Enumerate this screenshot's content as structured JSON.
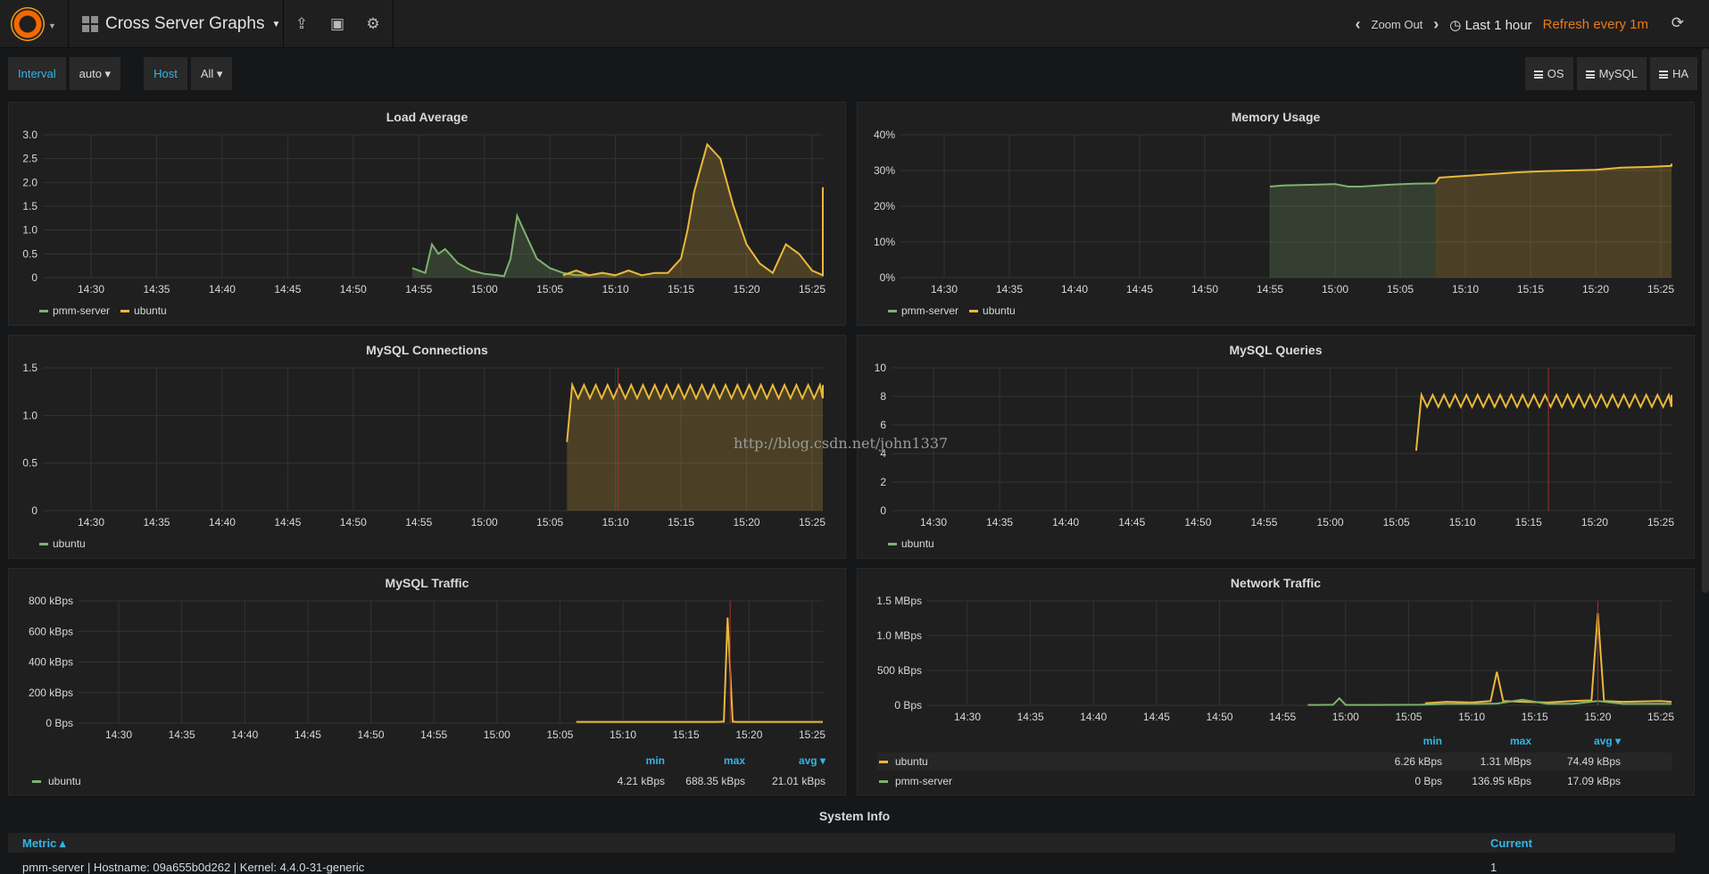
{
  "navbar": {
    "dashboard_title": "Cross Server Graphs",
    "zoom_out": "Zoom Out",
    "time_range": "Last 1 hour",
    "refresh": "Refresh every 1m"
  },
  "variables": [
    {
      "label": "Interval",
      "value": "auto ▾"
    },
    {
      "label": "Host",
      "value": "All ▾"
    }
  ],
  "dash_links": [
    "OS",
    "MySQL",
    "HA"
  ],
  "watermark": "http://blog.csdn.net/john1337",
  "time_axis": [
    "14:30",
    "14:35",
    "14:40",
    "14:45",
    "14:50",
    "14:55",
    "15:00",
    "15:05",
    "15:10",
    "15:15",
    "15:20",
    "15:25"
  ],
  "colors": {
    "pmm_server": "#7eb26d",
    "ubuntu": "#eab839",
    "annotation": "#a0312a",
    "accent": "#33b5e5",
    "refresh": "#eb7b18"
  },
  "panels": {
    "load_average": {
      "title": "Load Average",
      "legend": [
        "pmm-server",
        "ubuntu"
      ]
    },
    "memory_usage": {
      "title": "Memory Usage",
      "legend": [
        "pmm-server",
        "ubuntu"
      ]
    },
    "mysql_connections": {
      "title": "MySQL Connections",
      "legend": [
        "ubuntu"
      ]
    },
    "mysql_queries": {
      "title": "MySQL Queries",
      "legend": [
        "ubuntu"
      ]
    },
    "mysql_traffic": {
      "title": "MySQL Traffic",
      "columns": [
        "min",
        "max",
        "avg ▾"
      ],
      "rows": [
        {
          "name": "ubuntu",
          "min": "4.21 kBps",
          "max": "688.35 kBps",
          "avg": "21.01 kBps"
        }
      ]
    },
    "network_traffic": {
      "title": "Network Traffic",
      "columns": [
        "min",
        "max",
        "avg ▾"
      ],
      "rows": [
        {
          "name": "ubuntu",
          "min": "6.26 kBps",
          "max": "1.31 MBps",
          "avg": "74.49 kBps"
        },
        {
          "name": "pmm-server",
          "min": "0 Bps",
          "max": "136.95 kBps",
          "avg": "17.09 kBps"
        }
      ]
    }
  },
  "system_info": {
    "title": "System Info",
    "col_metric": "Metric ▴",
    "col_current": "Current",
    "row_metric": "pmm-server | Hostname: 09a655b0d262 | Kernel: 4.4.0-31-generic",
    "row_current": "1"
  },
  "chart_data": [
    {
      "type": "area",
      "title": "Load Average",
      "x_ticks": [
        "14:30",
        "14:35",
        "14:40",
        "14:45",
        "14:50",
        "14:55",
        "15:00",
        "15:05",
        "15:10",
        "15:15",
        "15:20",
        "15:25"
      ],
      "y_ticks": [
        "0",
        "0.5",
        "1.0",
        "1.5",
        "2.0",
        "2.5",
        "3.0"
      ],
      "ylim": [
        0,
        3.0
      ],
      "xlim_minutes": [
        0,
        60
      ],
      "series": [
        {
          "name": "pmm-server",
          "x": [
            24.5,
            25,
            25.5,
            26,
            26.5,
            27,
            28,
            29,
            30,
            31,
            31.5,
            32,
            32.5,
            33,
            34,
            35,
            36,
            37,
            38,
            39,
            40
          ],
          "y": [
            0.2,
            0.15,
            0.1,
            0.7,
            0.5,
            0.6,
            0.3,
            0.15,
            0.08,
            0.05,
            0.03,
            0.4,
            1.3,
            1.0,
            0.4,
            0.2,
            0.1,
            0.05,
            0.05,
            0.1,
            0.05
          ]
        },
        {
          "name": "ubuntu",
          "x": [
            36,
            37,
            38,
            39,
            40,
            41,
            42,
            43,
            44,
            45,
            45.5,
            46,
            46.5,
            47,
            48,
            49,
            50,
            51,
            52,
            53,
            54,
            55,
            56,
            57,
            58,
            59,
            60,
            61,
            61.5,
            62,
            62.5,
            63
          ],
          "y": [
            0.05,
            0.15,
            0.05,
            0.1,
            0.05,
            0.15,
            0.05,
            0.1,
            0.1,
            0.4,
            1.0,
            1.8,
            2.3,
            2.8,
            2.5,
            1.5,
            0.7,
            0.3,
            0.1,
            0.7,
            0.5,
            0.15,
            0.05,
            0.25,
            0.1,
            0.2,
            0.05,
            0.25,
            0.1,
            0.4,
            1.7,
            1.9
          ]
        }
      ]
    },
    {
      "type": "area",
      "title": "Memory Usage",
      "x_ticks": [
        "14:30",
        "14:35",
        "14:40",
        "14:45",
        "14:50",
        "14:55",
        "15:00",
        "15:05",
        "15:10",
        "15:15",
        "15:20",
        "15:25"
      ],
      "y_ticks": [
        "0%",
        "10%",
        "20%",
        "30%",
        "40%"
      ],
      "ylim": [
        0,
        40
      ],
      "series": [
        {
          "name": "pmm-server",
          "x": [
            25,
            26,
            28,
            30,
            31,
            32,
            34,
            36,
            37.7
          ],
          "y": [
            25.5,
            25.8,
            26,
            26.2,
            25.5,
            25.5,
            26,
            26.3,
            26.4
          ]
        },
        {
          "name": "ubuntu",
          "x": [
            37.7,
            38,
            40,
            42,
            44,
            46,
            48,
            50,
            51,
            52,
            54,
            56,
            58,
            60,
            62.5
          ],
          "y": [
            26.4,
            28,
            28.5,
            29,
            29.5,
            29.8,
            30,
            30.2,
            30.5,
            30.8,
            31,
            31.3,
            31.5,
            31.8,
            31.9
          ]
        }
      ]
    },
    {
      "type": "area",
      "title": "MySQL Connections",
      "x_ticks": [
        "14:30",
        "14:35",
        "14:40",
        "14:45",
        "14:50",
        "14:55",
        "15:00",
        "15:05",
        "15:10",
        "15:15",
        "15:20",
        "15:25"
      ],
      "y_ticks": [
        "0",
        "0.5",
        "1.0",
        "1.5"
      ],
      "ylim": [
        0,
        1.5
      ],
      "series": [
        {
          "name": "ubuntu",
          "x_start": 36.3,
          "x_end": 62.8,
          "base": 1.22,
          "amp": 0.1,
          "period": 0.9,
          "first": 0.72
        }
      ]
    },
    {
      "type": "line",
      "title": "MySQL Queries",
      "x_ticks": [
        "14:30",
        "14:35",
        "14:40",
        "14:45",
        "14:50",
        "14:55",
        "15:00",
        "15:05",
        "15:10",
        "15:15",
        "15:20",
        "15:25"
      ],
      "y_ticks": [
        "0",
        "2",
        "4",
        "6",
        "8",
        "10"
      ],
      "ylim": [
        0,
        10
      ],
      "series": [
        {
          "name": "ubuntu",
          "x_start": 36.5,
          "x_end": 62.8,
          "base": 7.5,
          "amp": 0.6,
          "period": 0.85,
          "first": 4.2
        }
      ]
    },
    {
      "type": "line",
      "title": "MySQL Traffic",
      "x_ticks": [
        "14:30",
        "14:35",
        "14:40",
        "14:45",
        "14:50",
        "14:55",
        "15:00",
        "15:05",
        "15:10",
        "15:15",
        "15:20",
        "15:25"
      ],
      "y_ticks": [
        "0 Bps",
        "200 kBps",
        "400 kBps",
        "600 kBps",
        "800 kBps"
      ],
      "ylim": [
        0,
        800
      ],
      "series": [
        {
          "name": "ubuntu",
          "x": [
            36.3,
            38,
            40,
            42,
            44,
            46,
            47.5,
            48,
            48.3,
            48.7,
            49,
            50,
            52,
            55,
            59.8
          ],
          "y": [
            8,
            8,
            8,
            8,
            8,
            8,
            8,
            10,
            690,
            10,
            8,
            8,
            8,
            8,
            8
          ]
        }
      ]
    },
    {
      "type": "line",
      "title": "Network Traffic",
      "x_ticks": [
        "14:30",
        "14:35",
        "14:40",
        "14:45",
        "14:50",
        "14:55",
        "15:00",
        "15:05",
        "15:10",
        "15:15",
        "15:20",
        "15:25"
      ],
      "y_ticks": [
        "0 Bps",
        "500 kBps",
        "1.0 MBps",
        "1.5 MBps"
      ],
      "ylim": [
        0,
        1500
      ],
      "series": [
        {
          "name": "ubuntu",
          "x": [
            36.3,
            38,
            40,
            41.5,
            42,
            42.5,
            44,
            46,
            48,
            49.5,
            50,
            50.5,
            52,
            55,
            58
          ],
          "y": [
            30,
            50,
            40,
            60,
            480,
            60,
            50,
            40,
            60,
            70,
            1320,
            60,
            50,
            60,
            50
          ]
        },
        {
          "name": "pmm-server",
          "x": [
            27,
            28,
            29,
            29.5,
            30,
            32,
            36,
            38,
            40,
            42,
            44,
            46,
            48,
            50,
            52,
            55,
            58
          ],
          "y": [
            5,
            5,
            8,
            100,
            5,
            5,
            8,
            20,
            20,
            25,
            80,
            20,
            20,
            60,
            20,
            20,
            20
          ]
        }
      ]
    }
  ]
}
